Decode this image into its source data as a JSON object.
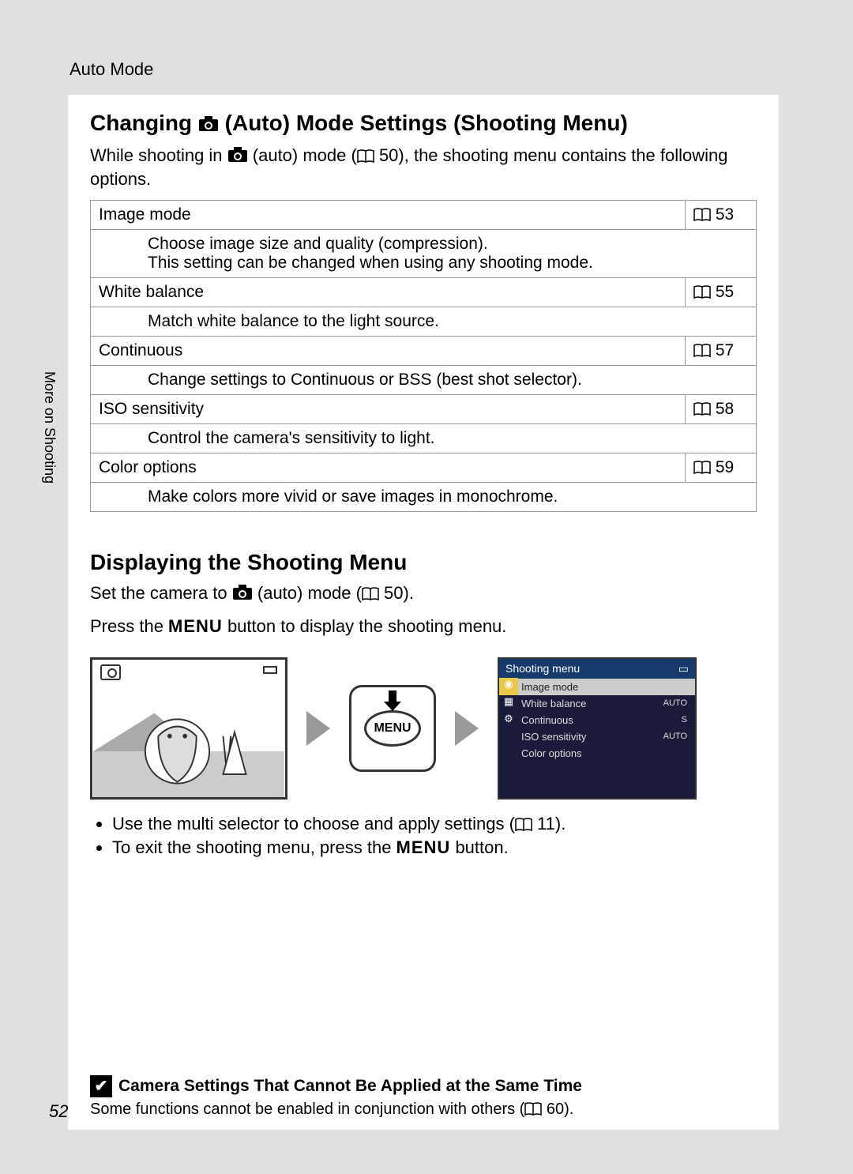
{
  "page": {
    "section_label": "Auto Mode",
    "side_label": "More on Shooting",
    "page_number": "52"
  },
  "heading1": {
    "pre": "Changing ",
    "post": " (Auto) Mode Settings (Shooting Menu)"
  },
  "intro": {
    "pre": "While shooting in ",
    "mid": " (auto) mode (",
    "ref": " 50), the shooting menu contains the following options."
  },
  "options": [
    {
      "name": "Image mode",
      "ref": " 53",
      "desc": "Choose image size and quality (compression).\nThis setting can be changed when using any shooting mode."
    },
    {
      "name": "White balance",
      "ref": " 55",
      "desc": "Match white balance to the light source."
    },
    {
      "name": "Continuous",
      "ref": " 57",
      "desc": "Change settings to Continuous or BSS (best shot selector)."
    },
    {
      "name": "ISO sensitivity",
      "ref": " 58",
      "desc": "Control the camera's sensitivity to light."
    },
    {
      "name": "Color options",
      "ref": " 59",
      "desc": "Make colors more vivid or save images in monochrome."
    }
  ],
  "heading2": "Displaying the Shooting Menu",
  "intro2": {
    "line1_pre": "Set the camera to ",
    "line1_mid": " (auto) mode (",
    "line1_ref": " 50).",
    "line2_pre": "Press the ",
    "line2_menu": "MENU",
    "line2_post": " button to display the shooting menu."
  },
  "menu_button_label": "MENU",
  "shooting_menu": {
    "title": "Shooting menu",
    "rows": [
      {
        "label": "Image mode",
        "value": "",
        "selected": true
      },
      {
        "label": "White balance",
        "value": "AUTO",
        "selected": false
      },
      {
        "label": "Continuous",
        "value": "S",
        "selected": false
      },
      {
        "label": "ISO sensitivity",
        "value": "AUTO",
        "selected": false
      },
      {
        "label": "Color options",
        "value": "",
        "selected": false
      }
    ],
    "colors": {
      "bg": "#1a1a3a",
      "title_bg": "#153a6b",
      "selected_bg": "#cccccc",
      "text": "#dddddd"
    }
  },
  "bullets": [
    {
      "pre": "Use the multi selector to choose and apply settings (",
      "ref": " 11)."
    },
    {
      "pre": "To exit the shooting menu, press the ",
      "menu": "MENU",
      "post": " button."
    }
  ],
  "note": {
    "title": "Camera Settings That Cannot Be Applied at the Same Time",
    "body_pre": "Some functions cannot be enabled in conjunction with others (",
    "body_ref": " 60)."
  }
}
